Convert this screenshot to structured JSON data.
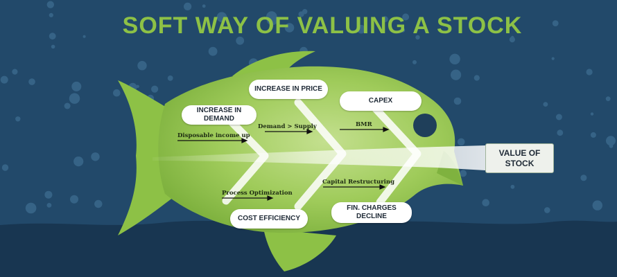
{
  "title": "SOFT WAY OF VALUING A STOCK",
  "boxes": {
    "increase_demand": "INCREASE IN DEMAND",
    "increase_price": "INCREASE IN PRICE",
    "capex": "CAPEX",
    "cost_efficiency": "COST EFFICIENCY",
    "fin_charges": "FIN. CHARGES DECLINE"
  },
  "value_of_stock": "VALUE OF STOCK",
  "causes": {
    "disposable_income": "Disposable income up",
    "demand_supply": "Demand > Supply",
    "bmr": "BMR",
    "process_optimization": "Process Optimization",
    "capital_restructuring": "Capital Restructuring"
  },
  "colors": {
    "background": "#22496a",
    "fish": "#8dc146",
    "title": "#8dc146",
    "box": "#ffffff"
  }
}
